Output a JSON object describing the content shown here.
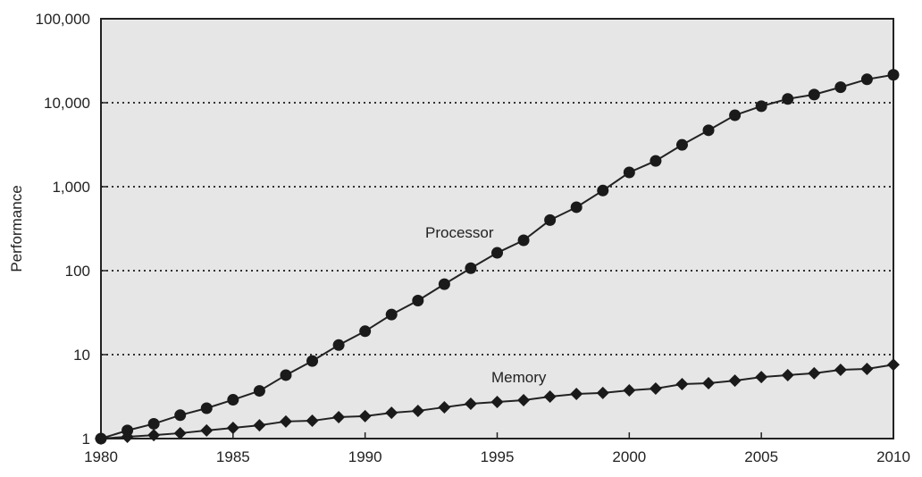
{
  "chart_data": {
    "type": "line",
    "title": "",
    "xlabel": "",
    "ylabel": "Performance",
    "yscale": "log",
    "xlim": [
      1980,
      2010
    ],
    "ylim": [
      1,
      100000
    ],
    "grid": "horizontal dotted",
    "x_ticks": [
      "1980",
      "1985",
      "1990",
      "1995",
      "2000",
      "2005",
      "2010"
    ],
    "x_tick_values": [
      1980,
      1985,
      1990,
      1995,
      2000,
      2005,
      2010
    ],
    "y_ticks": [
      "1",
      "10",
      "100",
      "1,000",
      "10,000",
      "100,000"
    ],
    "y_tick_values": [
      1,
      10,
      100,
      1000,
      10000,
      100000
    ],
    "x": [
      1980,
      1981,
      1982,
      1983,
      1984,
      1985,
      1986,
      1987,
      1988,
      1989,
      1990,
      1991,
      1992,
      1993,
      1994,
      1995,
      1996,
      1997,
      1998,
      1999,
      2000,
      2001,
      2002,
      2003,
      2004,
      2005,
      2006,
      2007,
      2008,
      2009,
      2010
    ],
    "series": [
      {
        "name": "Processor",
        "marker": "circle",
        "values": [
          1,
          1.25,
          1.5,
          1.9,
          2.3,
          2.9,
          3.7,
          5.7,
          8.4,
          13,
          19,
          30,
          44,
          69,
          107,
          163,
          230,
          400,
          570,
          900,
          1480,
          2030,
          3150,
          4700,
          7100,
          9100,
          11100,
          12500,
          15300,
          19000,
          21500
        ]
      },
      {
        "name": "Memory",
        "marker": "diamond",
        "values": [
          1,
          1.05,
          1.1,
          1.16,
          1.25,
          1.34,
          1.44,
          1.6,
          1.63,
          1.8,
          1.85,
          2.03,
          2.14,
          2.36,
          2.6,
          2.73,
          2.87,
          3.16,
          3.4,
          3.5,
          3.75,
          3.94,
          4.45,
          4.56,
          4.9,
          5.4,
          5.7,
          6.0,
          6.6,
          6.75,
          7.6
        ]
      }
    ],
    "annotations": [
      "Processor",
      "Memory"
    ]
  },
  "colors": {
    "plot_bg": "#e6e6e6",
    "line": "#222222",
    "marker": "#1a1a1a"
  }
}
